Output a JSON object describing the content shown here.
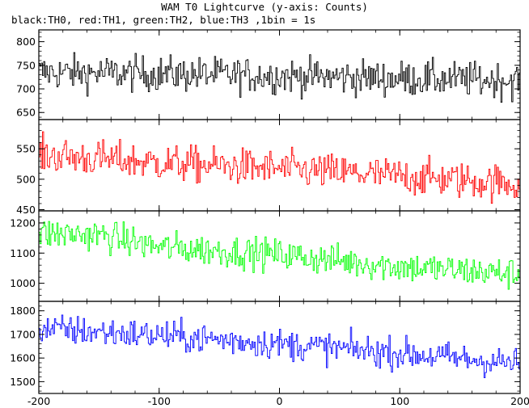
{
  "chart_data": {
    "type": "line",
    "title": "WAM T0 Lightcurve (y-axis: Counts)",
    "subtitle": "black:TH0, red:TH1, green:TH2, blue:TH3 ,1bin = 1s",
    "xlim": [
      -200,
      200
    ],
    "x_ticks": [
      -200,
      -100,
      0,
      100,
      200
    ],
    "x_tick_labels": [
      "-200",
      "-100",
      "0",
      "100",
      "200"
    ],
    "bin_seconds": 1,
    "grid": false,
    "panels": [
      {
        "name": "TH0",
        "color": "#000000",
        "ylim": [
          635,
          825
        ],
        "y_ticks": [
          650,
          700,
          750,
          800
        ],
        "trend": {
          "x": [
            -200,
            -100,
            0,
            100,
            200
          ],
          "y": [
            735,
            732,
            728,
            722,
            718
          ]
        },
        "noise_amplitude": 30
      },
      {
        "name": "TH1",
        "color": "#ff0000",
        "ylim": [
          448,
          598
        ],
        "y_ticks": [
          450,
          500,
          550
        ],
        "trend": {
          "x": [
            -200,
            -100,
            0,
            100,
            200
          ],
          "y": [
            540,
            527,
            517,
            505,
            492
          ]
        },
        "noise_amplitude": 24
      },
      {
        "name": "TH2",
        "color": "#00ff00",
        "ylim": [
          940,
          1240
        ],
        "y_ticks": [
          1000,
          1100,
          1200
        ],
        "trend": {
          "x": [
            -200,
            -150,
            -100,
            0,
            100,
            200
          ],
          "y": [
            1165,
            1160,
            1120,
            1095,
            1055,
            1030
          ]
        },
        "noise_amplitude": 42
      },
      {
        "name": "TH3",
        "color": "#0000ff",
        "ylim": [
          1450,
          1840
        ],
        "y_ticks": [
          1500,
          1600,
          1700,
          1800
        ],
        "trend": {
          "x": [
            -200,
            -100,
            0,
            100,
            200
          ],
          "y": [
            1725,
            1695,
            1660,
            1620,
            1575
          ]
        },
        "noise_amplitude": 52
      }
    ]
  }
}
